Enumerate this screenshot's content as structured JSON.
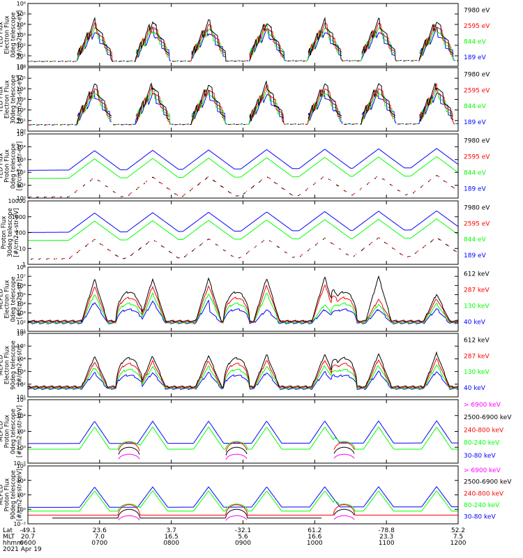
{
  "figure": {
    "footer": {
      "row_labels": [
        "Lat",
        "MLT",
        "hhmm",
        "2021 Apr 19"
      ],
      "lat": [
        "-49.1",
        "23.6",
        "3.7",
        "-32.1",
        "61.2",
        "-78.8",
        "52.2"
      ],
      "mlt": [
        "20.7",
        "7.0",
        "16.5",
        "5.6",
        "16.6",
        "23.3",
        "7.5"
      ],
      "hhmm": [
        "0600",
        "0700",
        "0800",
        "0900",
        "1000",
        "1100",
        "1200"
      ]
    }
  },
  "colors": {
    "blue": "#0000ff",
    "red": "#ff0000",
    "green": "#00ff00",
    "black": "#000000",
    "magenta": "#ff00ff"
  },
  "chart_data": [
    {
      "type": "line",
      "ylabel": [
        "TED Flux",
        "Electron Flux",
        "0deg telescope",
        "[#/cm2-s-str-eV]"
      ],
      "log_scale": true,
      "ylim": [
        1,
        1000000
      ],
      "yticks": [
        "10⁰",
        "10¹",
        "10²",
        "10³",
        "10⁴",
        "10⁵",
        "10⁶"
      ],
      "legend": [
        {
          "label": "7980 eV",
          "color": "#000000"
        },
        {
          "label": "2595 eV",
          "color": "#ff0000"
        },
        {
          "label": "844 eV",
          "color": "#00ff00"
        },
        {
          "label": "189 eV",
          "color": "#0000ff"
        }
      ],
      "series": [
        {
          "name": "7980 eV",
          "color": "#000000"
        },
        {
          "name": "2595 eV",
          "color": "#ff0000"
        },
        {
          "name": "844 eV",
          "color": "#00ff00"
        },
        {
          "name": "189 eV",
          "color": "#0000ff"
        }
      ]
    },
    {
      "type": "line",
      "ylabel": [
        "TED Flux",
        "Electron Flux",
        "30deg telescope",
        "[#/cm2-s-str-eV]"
      ],
      "log_scale": true,
      "ylim": [
        1,
        1000000
      ],
      "yticks": [
        "10⁰",
        "10¹",
        "10²",
        "10³",
        "10⁴",
        "10⁵",
        "10⁶"
      ],
      "legend": [
        {
          "label": "7980 eV",
          "color": "#000000"
        },
        {
          "label": "2595 eV",
          "color": "#ff0000"
        },
        {
          "label": "844 eV",
          "color": "#00ff00"
        },
        {
          "label": "189 eV",
          "color": "#0000ff"
        }
      ],
      "series": [
        {
          "name": "7980 eV",
          "color": "#000000"
        },
        {
          "name": "2595 eV",
          "color": "#ff0000"
        },
        {
          "name": "844 eV",
          "color": "#00ff00"
        },
        {
          "name": "189 eV",
          "color": "#0000ff"
        }
      ]
    },
    {
      "type": "line",
      "ylabel": [
        "TED Flux",
        "Proton Flux",
        "0deg telescope",
        "[#/cm2-s-str-eV]"
      ],
      "log_scale": true,
      "ylim": [
        1,
        100000
      ],
      "yticks": [
        "10⁰",
        "10¹",
        "10²",
        "10³",
        "10⁴",
        "10⁵"
      ],
      "legend": [
        {
          "label": "7980 eV",
          "color": "#000000"
        },
        {
          "label": "2595 eV",
          "color": "#ff0000"
        },
        {
          "label": "844 eV",
          "color": "#00ff00"
        },
        {
          "label": "189 eV",
          "color": "#0000ff"
        }
      ],
      "series": [
        {
          "name": "7980 eV",
          "color": "#000000"
        },
        {
          "name": "2595 eV",
          "color": "#ff0000"
        },
        {
          "name": "844 eV",
          "color": "#00ff00"
        },
        {
          "name": "189 eV",
          "color": "#0000ff"
        }
      ]
    },
    {
      "type": "line",
      "ylabel": [
        "Proton Flux",
        "30deg telescope",
        "[#/cm2-s-str-eV]"
      ],
      "log_scale": true,
      "ylim": [
        1,
        10000
      ],
      "yticks": [
        "1",
        "10",
        "100",
        "1000",
        "10000"
      ],
      "legend": [
        {
          "label": "7980 eV",
          "color": "#000000"
        },
        {
          "label": "2595 eV",
          "color": "#ff0000"
        },
        {
          "label": "844 eV",
          "color": "#00ff00"
        },
        {
          "label": "189 eV",
          "color": "#0000ff"
        }
      ],
      "series": [
        {
          "name": "7980 eV",
          "color": "#000000"
        },
        {
          "name": "2595 eV",
          "color": "#ff0000"
        },
        {
          "name": "844 eV",
          "color": "#00ff00"
        },
        {
          "name": "189 eV",
          "color": "#0000ff"
        }
      ]
    },
    {
      "type": "line",
      "ylabel": [
        "MEPED",
        "Electron Flux",
        "0deg telescope",
        "[#/cm2-s-str]"
      ],
      "log_scale": true,
      "ylim": [
        10,
        100000000
      ],
      "yticks": [
        "10¹",
        "10²",
        "10³",
        "10⁴",
        "10⁵",
        "10⁶",
        "10⁷",
        "10⁸"
      ],
      "legend": [
        {
          "label": "612 keV",
          "color": "#000000"
        },
        {
          "label": "287 keV",
          "color": "#ff0000"
        },
        {
          "label": "130 keV",
          "color": "#00ff00"
        },
        {
          "label": "40 keV",
          "color": "#0000ff"
        }
      ],
      "series": [
        {
          "name": "612 keV",
          "color": "#000000"
        },
        {
          "name": "287 keV",
          "color": "#ff0000"
        },
        {
          "name": "130 keV",
          "color": "#00ff00"
        },
        {
          "name": "40 keV",
          "color": "#0000ff"
        }
      ]
    },
    {
      "type": "line",
      "ylabel": [
        "MEPED",
        "Electron Flux",
        "90deg telescope",
        "[#/cm2-s-str]"
      ],
      "log_scale": true,
      "ylim": [
        10,
        1000000
      ],
      "yticks": [
        "10¹",
        "10²",
        "10³",
        "10⁴",
        "10⁵",
        "10⁶"
      ],
      "legend": [
        {
          "label": "612 keV",
          "color": "#000000"
        },
        {
          "label": "287 keV",
          "color": "#ff0000"
        },
        {
          "label": "130 keV",
          "color": "#00ff00"
        },
        {
          "label": "40 keV",
          "color": "#0000ff"
        }
      ],
      "series": [
        {
          "name": "612 keV",
          "color": "#000000"
        },
        {
          "name": "287 keV",
          "color": "#ff0000"
        },
        {
          "name": "130 keV",
          "color": "#00ff00"
        },
        {
          "name": "40 keV",
          "color": "#0000ff"
        }
      ]
    },
    {
      "type": "line",
      "ylabel": [
        "MEPED",
        "Proton Flux",
        "0deg telescope",
        "[#/cm2-s-str-keV]"
      ],
      "log_scale": true,
      "ylim": [
        0.01,
        1000000
      ],
      "yticks": [
        "10⁻²",
        "10⁰",
        "10²",
        "10⁴",
        "10⁶"
      ],
      "legend": [
        {
          "label": "> 6900 keV",
          "color": "#ff00ff"
        },
        {
          "label": "2500-6900 keV",
          "color": "#000000"
        },
        {
          "label": "240-800 keV",
          "color": "#ff0000"
        },
        {
          "label": "80-240 keV",
          "color": "#00ff00"
        },
        {
          "label": "30-80 keV",
          "color": "#0000ff"
        }
      ],
      "series": [
        {
          "name": "> 6900 keV",
          "color": "#ff00ff"
        },
        {
          "name": "2500-6900 keV",
          "color": "#000000"
        },
        {
          "name": "240-800 keV",
          "color": "#ff0000"
        },
        {
          "name": "80-240 keV",
          "color": "#00ff00"
        },
        {
          "name": "30-80 keV",
          "color": "#0000ff"
        }
      ]
    },
    {
      "type": "line",
      "ylabel": [
        "MEPED",
        "Proton Flux",
        "90deg telescope",
        "[#/cm2-s-str-keV]"
      ],
      "log_scale": true,
      "ylim": [
        0.01,
        1000000
      ],
      "yticks": [
        "10⁻²",
        "10⁰",
        "10²",
        "10⁴",
        "10⁶"
      ],
      "legend": [
        {
          "label": "> 6900 keV",
          "color": "#ff00ff"
        },
        {
          "label": "2500-6900 keV",
          "color": "#000000"
        },
        {
          "label": "240-800 keV",
          "color": "#ff0000"
        },
        {
          "label": "80-240 keV",
          "color": "#00ff00"
        },
        {
          "label": "30-80 keV",
          "color": "#0000ff"
        }
      ],
      "series": [
        {
          "name": "> 6900 keV",
          "color": "#ff00ff"
        },
        {
          "name": "2500-6900 keV",
          "color": "#000000"
        },
        {
          "name": "240-800 keV",
          "color": "#ff0000"
        },
        {
          "name": "80-240 keV",
          "color": "#00ff00"
        },
        {
          "name": "30-80 keV",
          "color": "#0000ff"
        }
      ]
    }
  ]
}
